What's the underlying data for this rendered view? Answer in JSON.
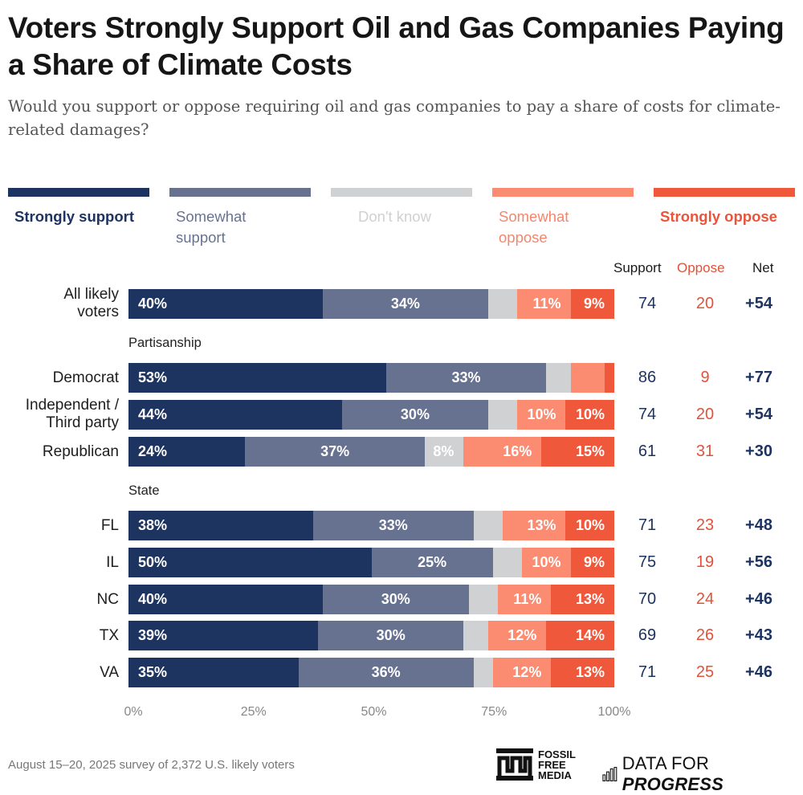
{
  "header": {
    "title": "Voters Strongly Support Oil and Gas Companies Paying a Share of Climate Costs",
    "subtitle": "Would you support or oppose requiring oil and gas companies to pay a share of costs for climate-related damages?"
  },
  "colors": {
    "strongly_support": "#1d3461",
    "somewhat_support": "#677291",
    "dont_know": "#d0d1d3",
    "somewhat_oppose": "#fb8c72",
    "strongly_oppose": "#ef583b"
  },
  "legend": [
    {
      "key": "strongly_support",
      "label": "Strongly support",
      "color": "#1d3461",
      "text_color": "#1d3461"
    },
    {
      "key": "somewhat_support",
      "label": "Somewhat support",
      "color": "#677291",
      "text_color": "#677291"
    },
    {
      "key": "dont_know",
      "label": "Don't know",
      "color": "#d0d1d3",
      "text_color": "#cfd0d2"
    },
    {
      "key": "somewhat_oppose",
      "label": "Somewhat oppose",
      "color": "#fb8c72",
      "text_color": "#f4866c"
    },
    {
      "key": "strongly_oppose",
      "label": "Strongly oppose",
      "color": "#ef583b",
      "text_color": "#e8553a"
    }
  ],
  "columns": {
    "support": "Support",
    "oppose": "Oppose",
    "net": "Net"
  },
  "chart_data": {
    "type": "bar",
    "orientation": "horizontal",
    "stacked": true,
    "title": "Voters Strongly Support Oil and Gas Companies Paying a Share of Climate Costs",
    "subtitle": "Would you support or oppose requiring oil and gas companies to pay a share of costs for climate-related damages?",
    "xlabel": "",
    "ylabel": "",
    "xlim": [
      0,
      100
    ],
    "x_ticks": [
      "0%",
      "25%",
      "50%",
      "75%",
      "100%"
    ],
    "grid": false,
    "legend_position": "top",
    "series_names": [
      "Strongly support",
      "Somewhat support",
      "Don't know",
      "Somewhat oppose",
      "Strongly oppose"
    ],
    "groups": [
      {
        "label": "",
        "rows": [
          {
            "label": "All likely voters",
            "values": [
              40,
              34,
              6,
              11,
              9
            ],
            "labels_shown": [
              true,
              true,
              false,
              true,
              true
            ],
            "support": "74",
            "oppose": "20",
            "net": "+54"
          }
        ]
      },
      {
        "label": "Partisanship",
        "rows": [
          {
            "label": "Democrat",
            "values": [
              53,
              33,
              5,
              7,
              2
            ],
            "labels_shown": [
              true,
              true,
              false,
              false,
              false
            ],
            "support": "86",
            "oppose": "9",
            "net": "+77"
          },
          {
            "label": "Independent / Third party",
            "values": [
              44,
              30,
              6,
              10,
              10
            ],
            "labels_shown": [
              true,
              true,
              false,
              true,
              true
            ],
            "support": "74",
            "oppose": "20",
            "net": "+54"
          },
          {
            "label": "Republican",
            "values": [
              24,
              37,
              8,
              16,
              15
            ],
            "labels_shown": [
              true,
              true,
              true,
              true,
              true
            ],
            "support": "61",
            "oppose": "31",
            "net": "+30"
          }
        ]
      },
      {
        "label": "State",
        "rows": [
          {
            "label": "FL",
            "values": [
              38,
              33,
              6,
              13,
              10
            ],
            "labels_shown": [
              true,
              true,
              false,
              true,
              true
            ],
            "support": "71",
            "oppose": "23",
            "net": "+48"
          },
          {
            "label": "IL",
            "values": [
              50,
              25,
              6,
              10,
              9
            ],
            "labels_shown": [
              true,
              true,
              false,
              true,
              true
            ],
            "support": "75",
            "oppose": "19",
            "net": "+56"
          },
          {
            "label": "NC",
            "values": [
              40,
              30,
              6,
              11,
              13
            ],
            "labels_shown": [
              true,
              true,
              false,
              true,
              true
            ],
            "support": "70",
            "oppose": "24",
            "net": "+46"
          },
          {
            "label": "TX",
            "values": [
              39,
              30,
              5,
              12,
              14
            ],
            "labels_shown": [
              true,
              true,
              false,
              true,
              true
            ],
            "support": "69",
            "oppose": "26",
            "net": "+43"
          },
          {
            "label": "VA",
            "values": [
              35,
              36,
              4,
              12,
              13
            ],
            "labels_shown": [
              true,
              true,
              false,
              true,
              true
            ],
            "support": "71",
            "oppose": "25",
            "net": "+46"
          }
        ]
      }
    ]
  },
  "footer": {
    "note": "August 15–20, 2025 survey of 2,372 U.S. likely voters",
    "logo_ffm_lines": [
      "FOSSIL",
      "FREE",
      "MEDIA"
    ],
    "logo_dfp_light": "DATA FOR",
    "logo_dfp_bold": "PROGRESS"
  }
}
